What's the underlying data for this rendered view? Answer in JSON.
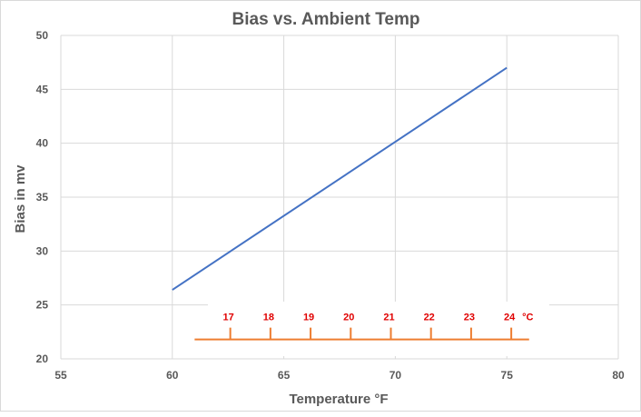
{
  "chart_data": {
    "type": "line",
    "title": "Bias vs. Ambient Temp",
    "xlabel": "Temperature °F",
    "ylabel": "Bias in mv",
    "xlim": [
      55,
      80
    ],
    "ylim": [
      20,
      50
    ],
    "x_ticks": [
      "55",
      "60",
      "65",
      "70",
      "75",
      "80"
    ],
    "y_ticks": [
      "20",
      "25",
      "30",
      "35",
      "40",
      "45",
      "50"
    ],
    "grid": true,
    "series": [
      {
        "x": [
          60,
          75
        ],
        "y": [
          26.4,
          47.0
        ],
        "color": "#4472c4"
      }
    ],
    "secondary_scale": {
      "unit": "°C",
      "color": "#ed7d31",
      "label_color": "#e00000",
      "y_position": 21.8,
      "x_start": 61,
      "x_end": 76,
      "ticks": [
        {
          "label": "17",
          "x": 62.6
        },
        {
          "label": "18",
          "x": 64.4
        },
        {
          "label": "19",
          "x": 66.2
        },
        {
          "label": "20",
          "x": 68.0
        },
        {
          "label": "21",
          "x": 69.8
        },
        {
          "label": "22",
          "x": 71.6
        },
        {
          "label": "23",
          "x": 73.4
        },
        {
          "label": "24",
          "x": 75.2
        }
      ]
    }
  }
}
